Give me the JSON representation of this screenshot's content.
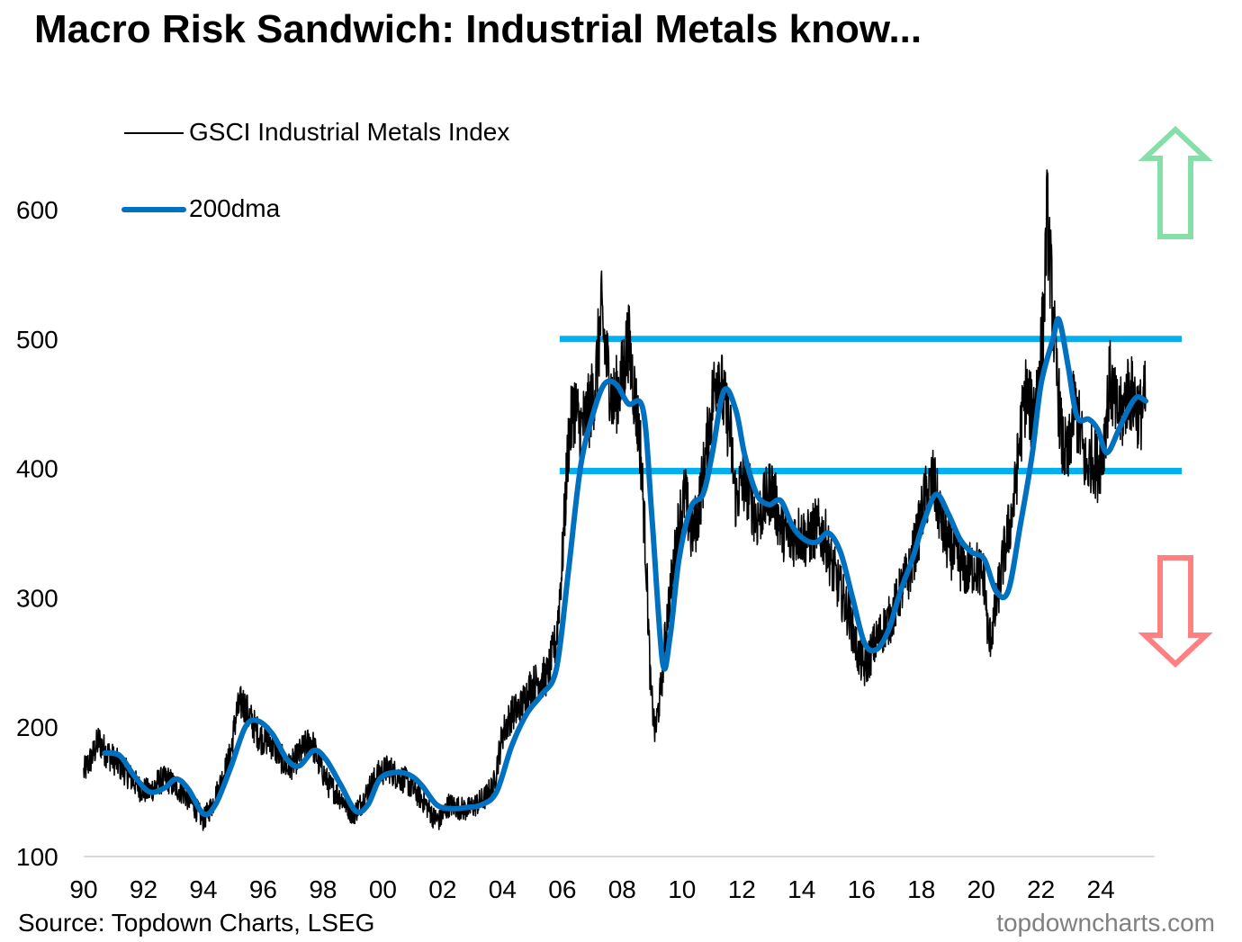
{
  "title": "Macro Risk Sandwich: Industrial Metals know...",
  "source": "Source: Topdown Charts, LSEG",
  "brand": "topdowncharts.com",
  "colors": {
    "index_line": "#000000",
    "ma_line": "#0070C0",
    "band_line": "#00B0F0",
    "up_arrow": "#86DEA8",
    "down_arrow": "#FF8080",
    "axis": "#D9D9D9"
  },
  "chart_data": {
    "type": "line",
    "title": "Macro Risk Sandwich: Industrial Metals know...",
    "xlabel": "",
    "ylabel": "",
    "xlim": [
      1990,
      2025.8
    ],
    "ylim": [
      100,
      600
    ],
    "x_ticks": [
      "90",
      "92",
      "94",
      "96",
      "98",
      "00",
      "02",
      "04",
      "06",
      "08",
      "10",
      "12",
      "14",
      "16",
      "18",
      "20",
      "22",
      "24"
    ],
    "y_ticks": [
      "100",
      "200",
      "300",
      "400",
      "500",
      "600"
    ],
    "legend_position": "top-left",
    "grid": false,
    "series": [
      {
        "name": "GSCI Industrial Metals Index",
        "style": "thin",
        "points": [
          [
            1990.0,
            165
          ],
          [
            1990.3,
            178
          ],
          [
            1990.5,
            190
          ],
          [
            1990.7,
            182
          ],
          [
            1991.0,
            175
          ],
          [
            1991.3,
            168
          ],
          [
            1991.6,
            160
          ],
          [
            1991.9,
            152
          ],
          [
            1992.2,
            150
          ],
          [
            1992.5,
            158
          ],
          [
            1992.8,
            160
          ],
          [
            1993.0,
            155
          ],
          [
            1993.3,
            150
          ],
          [
            1993.6,
            142
          ],
          [
            1993.8,
            135
          ],
          [
            1994.0,
            128
          ],
          [
            1994.3,
            140
          ],
          [
            1994.6,
            158
          ],
          [
            1994.9,
            178
          ],
          [
            1995.1,
            210
          ],
          [
            1995.3,
            220
          ],
          [
            1995.6,
            205
          ],
          [
            1995.9,
            192
          ],
          [
            1996.2,
            190
          ],
          [
            1996.5,
            180
          ],
          [
            1996.8,
            168
          ],
          [
            1997.0,
            172
          ],
          [
            1997.3,
            182
          ],
          [
            1997.6,
            190
          ],
          [
            1997.9,
            170
          ],
          [
            1998.2,
            155
          ],
          [
            1998.5,
            148
          ],
          [
            1998.8,
            140
          ],
          [
            1999.0,
            132
          ],
          [
            1999.3,
            142
          ],
          [
            1999.6,
            155
          ],
          [
            1999.9,
            165
          ],
          [
            2000.2,
            168
          ],
          [
            2000.5,
            162
          ],
          [
            2000.8,
            158
          ],
          [
            2001.1,
            150
          ],
          [
            2001.4,
            142
          ],
          [
            2001.7,
            130
          ],
          [
            2001.9,
            128
          ],
          [
            2002.2,
            140
          ],
          [
            2002.5,
            138
          ],
          [
            2002.8,
            136
          ],
          [
            2003.1,
            140
          ],
          [
            2003.4,
            145
          ],
          [
            2003.7,
            155
          ],
          [
            2004.0,
            195
          ],
          [
            2004.3,
            210
          ],
          [
            2004.6,
            215
          ],
          [
            2004.9,
            230
          ],
          [
            2005.2,
            236
          ],
          [
            2005.5,
            240
          ],
          [
            2005.8,
            268
          ],
          [
            2006.0,
            330
          ],
          [
            2006.2,
            420
          ],
          [
            2006.4,
            450
          ],
          [
            2006.6,
            430
          ],
          [
            2006.9,
            445
          ],
          [
            2007.1,
            465
          ],
          [
            2007.3,
            520
          ],
          [
            2007.5,
            480
          ],
          [
            2007.7,
            450
          ],
          [
            2008.0,
            470
          ],
          [
            2008.2,
            500
          ],
          [
            2008.4,
            460
          ],
          [
            2008.6,
            420
          ],
          [
            2008.8,
            330
          ],
          [
            2008.95,
            230
          ],
          [
            2009.1,
            195
          ],
          [
            2009.3,
            230
          ],
          [
            2009.5,
            285
          ],
          [
            2009.7,
            320
          ],
          [
            2009.9,
            360
          ],
          [
            2010.1,
            380
          ],
          [
            2010.3,
            350
          ],
          [
            2010.5,
            360
          ],
          [
            2010.8,
            410
          ],
          [
            2011.0,
            450
          ],
          [
            2011.2,
            480
          ],
          [
            2011.4,
            450
          ],
          [
            2011.6,
            430
          ],
          [
            2011.8,
            375
          ],
          [
            2012.0,
            390
          ],
          [
            2012.2,
            385
          ],
          [
            2012.5,
            360
          ],
          [
            2012.8,
            375
          ],
          [
            2013.0,
            385
          ],
          [
            2013.3,
            355
          ],
          [
            2013.6,
            345
          ],
          [
            2013.9,
            350
          ],
          [
            2014.2,
            345
          ],
          [
            2014.5,
            355
          ],
          [
            2014.8,
            345
          ],
          [
            2015.0,
            325
          ],
          [
            2015.3,
            305
          ],
          [
            2015.6,
            285
          ],
          [
            2015.9,
            255
          ],
          [
            2016.1,
            245
          ],
          [
            2016.4,
            262
          ],
          [
            2016.7,
            275
          ],
          [
            2017.0,
            285
          ],
          [
            2017.3,
            305
          ],
          [
            2017.6,
            320
          ],
          [
            2017.9,
            350
          ],
          [
            2018.1,
            375
          ],
          [
            2018.4,
            390
          ],
          [
            2018.7,
            355
          ],
          [
            2018.9,
            340
          ],
          [
            2019.2,
            330
          ],
          [
            2019.5,
            320
          ],
          [
            2019.8,
            325
          ],
          [
            2020.1,
            315
          ],
          [
            2020.25,
            265
          ],
          [
            2020.45,
            285
          ],
          [
            2020.7,
            325
          ],
          [
            2020.9,
            350
          ],
          [
            2021.1,
            375
          ],
          [
            2021.3,
            425
          ],
          [
            2021.5,
            460
          ],
          [
            2021.7,
            440
          ],
          [
            2021.9,
            465
          ],
          [
            2022.1,
            520
          ],
          [
            2022.2,
            600
          ],
          [
            2022.35,
            540
          ],
          [
            2022.5,
            480
          ],
          [
            2022.7,
            420
          ],
          [
            2022.9,
            405
          ],
          [
            2023.1,
            450
          ],
          [
            2023.3,
            430
          ],
          [
            2023.5,
            400
          ],
          [
            2023.7,
            410
          ],
          [
            2023.9,
            400
          ],
          [
            2024.1,
            420
          ],
          [
            2024.3,
            470
          ],
          [
            2024.5,
            445
          ],
          [
            2024.7,
            440
          ],
          [
            2024.9,
            460
          ],
          [
            2025.1,
            455
          ],
          [
            2025.3,
            440
          ],
          [
            2025.5,
            455
          ]
        ]
      },
      {
        "name": "200dma",
        "style": "thick",
        "points": [
          [
            1990.7,
            180
          ],
          [
            1991.2,
            178
          ],
          [
            1991.7,
            162
          ],
          [
            1992.2,
            150
          ],
          [
            1992.7,
            153
          ],
          [
            1993.1,
            160
          ],
          [
            1993.5,
            152
          ],
          [
            1994.0,
            133
          ],
          [
            1994.4,
            140
          ],
          [
            1994.9,
            168
          ],
          [
            1995.4,
            200
          ],
          [
            1995.8,
            205
          ],
          [
            1996.3,
            195
          ],
          [
            1996.8,
            175
          ],
          [
            1997.2,
            170
          ],
          [
            1997.7,
            182
          ],
          [
            1998.1,
            175
          ],
          [
            1998.6,
            155
          ],
          [
            1999.1,
            135
          ],
          [
            1999.5,
            140
          ],
          [
            1999.9,
            160
          ],
          [
            2000.4,
            165
          ],
          [
            2000.9,
            163
          ],
          [
            2001.3,
            155
          ],
          [
            2001.8,
            140
          ],
          [
            2002.3,
            137
          ],
          [
            2002.8,
            138
          ],
          [
            2003.3,
            140
          ],
          [
            2003.8,
            150
          ],
          [
            2004.3,
            185
          ],
          [
            2004.8,
            210
          ],
          [
            2005.3,
            225
          ],
          [
            2005.8,
            245
          ],
          [
            2006.2,
            320
          ],
          [
            2006.6,
            400
          ],
          [
            2007.0,
            440
          ],
          [
            2007.4,
            465
          ],
          [
            2007.8,
            465
          ],
          [
            2008.2,
            450
          ],
          [
            2008.7,
            445
          ],
          [
            2009.0,
            360
          ],
          [
            2009.35,
            250
          ],
          [
            2009.6,
            270
          ],
          [
            2009.9,
            330
          ],
          [
            2010.3,
            370
          ],
          [
            2010.7,
            380
          ],
          [
            2011.0,
            410
          ],
          [
            2011.4,
            460
          ],
          [
            2011.8,
            445
          ],
          [
            2012.1,
            410
          ],
          [
            2012.5,
            380
          ],
          [
            2012.9,
            372
          ],
          [
            2013.3,
            375
          ],
          [
            2013.7,
            355
          ],
          [
            2014.1,
            345
          ],
          [
            2014.5,
            343
          ],
          [
            2014.9,
            350
          ],
          [
            2015.3,
            335
          ],
          [
            2015.7,
            300
          ],
          [
            2016.1,
            265
          ],
          [
            2016.5,
            260
          ],
          [
            2016.9,
            275
          ],
          [
            2017.3,
            305
          ],
          [
            2017.7,
            330
          ],
          [
            2018.1,
            360
          ],
          [
            2018.5,
            380
          ],
          [
            2018.9,
            365
          ],
          [
            2019.3,
            345
          ],
          [
            2019.7,
            335
          ],
          [
            2020.1,
            330
          ],
          [
            2020.5,
            305
          ],
          [
            2020.9,
            305
          ],
          [
            2021.3,
            355
          ],
          [
            2021.7,
            410
          ],
          [
            2022.0,
            465
          ],
          [
            2022.4,
            500
          ],
          [
            2022.6,
            515
          ],
          [
            2022.9,
            480
          ],
          [
            2023.2,
            440
          ],
          [
            2023.6,
            438
          ],
          [
            2023.9,
            430
          ],
          [
            2024.2,
            412
          ],
          [
            2024.6,
            430
          ],
          [
            2024.9,
            445
          ],
          [
            2025.2,
            455
          ],
          [
            2025.5,
            452
          ]
        ]
      }
    ],
    "reference_lines": [
      {
        "y": 500,
        "x_start": 2006.0,
        "x_end": 2025.8
      },
      {
        "y": 398,
        "x_start": 2006.0,
        "x_end": 2025.8
      }
    ],
    "annotations": [
      {
        "type": "arrow-up",
        "color": "#86DEA8"
      },
      {
        "type": "arrow-down",
        "color": "#FF8080"
      }
    ]
  }
}
